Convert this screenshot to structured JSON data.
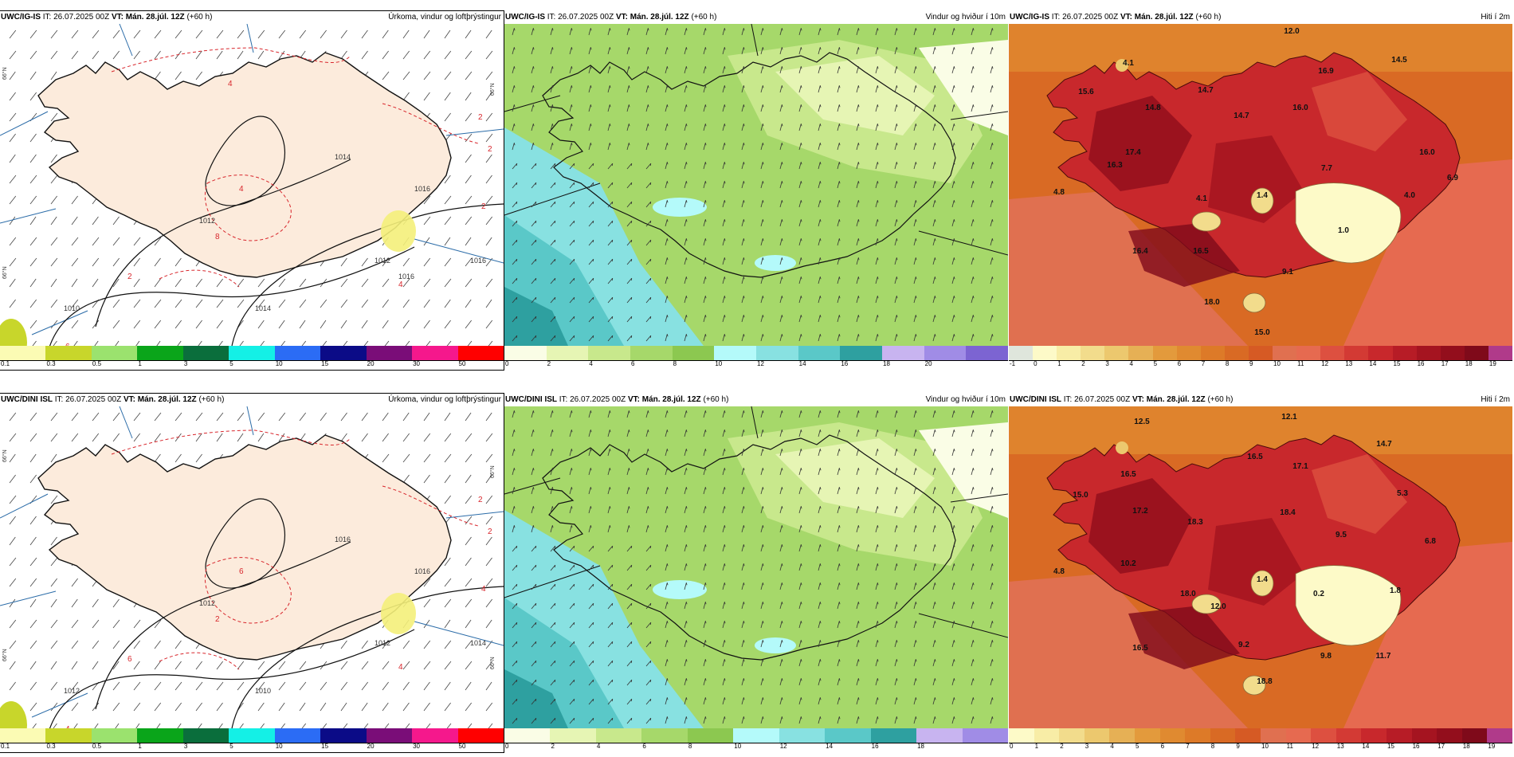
{
  "models": [
    {
      "model_label": "UWC/IG-IS",
      "it_text": "IT: 26.07.2025 00Z",
      "vt_label": "VT:",
      "vt_value": "Mán. 28.júl. 12Z",
      "lead": "(+60 h)"
    },
    {
      "model_label": "UWC/DINI ISL",
      "it_text": "IT: 26.07.2025 00Z",
      "vt_label": "VT:",
      "vt_value": "Mán. 28.júl. 12Z",
      "lead": "(+60 h)"
    }
  ],
  "products": {
    "precip": {
      "title": "Úrkoma, vindur og loftþrýstingur"
    },
    "wind": {
      "title": "Vindur og hviður í 10m"
    },
    "temp": {
      "title": "Hiti í 2m"
    }
  },
  "colorbars": {
    "precip_top": {
      "ticks": [
        "0.1",
        "0.3",
        "0.5",
        "1",
        "3",
        "5",
        "10",
        "15",
        "20",
        "30",
        "50"
      ],
      "colors": [
        "#fbfbb4",
        "#c8d62b",
        "#9be26e",
        "#0aa51a",
        "#0a6e3c",
        "#14f0e6",
        "#2b6cf5",
        "#0b0b87",
        "#7a0d78",
        "#f5188c",
        "#ff0000"
      ]
    },
    "precip_bottom": {
      "ticks": [
        "0.1",
        "0.3",
        "0.5",
        "1",
        "3",
        "5",
        "10",
        "15",
        "20",
        "30",
        "50"
      ],
      "colors": [
        "#fbfbb4",
        "#c8d62b",
        "#9be26e",
        "#0aa51a",
        "#0a6e3c",
        "#14f0e6",
        "#2b6cf5",
        "#0b0b87",
        "#7a0d78",
        "#f5188c",
        "#ff0000"
      ]
    },
    "wind_top": {
      "ticks": [
        "0",
        "2",
        "4",
        "6",
        "8",
        "10",
        "12",
        "14",
        "16",
        "18",
        "20"
      ],
      "colors": [
        "#fafde6",
        "#e6f5b4",
        "#c8e88c",
        "#a6d86a",
        "#8cc850",
        "#b4fafa",
        "#88e1e1",
        "#5ac8c8",
        "#2ea0a0",
        "#c8b4f0",
        "#a08ce6",
        "#7c64d2"
      ]
    },
    "wind_bottom": {
      "ticks": [
        "0",
        "2",
        "4",
        "6",
        "8",
        "10",
        "12",
        "14",
        "16",
        "18"
      ],
      "colors": [
        "#fafde6",
        "#e6f5b4",
        "#c8e88c",
        "#a6d86a",
        "#8cc850",
        "#b4fafa",
        "#88e1e1",
        "#5ac8c8",
        "#2ea0a0",
        "#c8b4f0",
        "#a08ce6"
      ]
    },
    "temp_top": {
      "ticks": [
        "-1",
        "0",
        "1",
        "2",
        "3",
        "4",
        "5",
        "6",
        "7",
        "8",
        "9",
        "10",
        "11",
        "12",
        "13",
        "14",
        "15",
        "16",
        "17",
        "18",
        "19"
      ],
      "colors": [
        "#dfe6dc",
        "#fdfac8",
        "#f8eda6",
        "#f2dc8c",
        "#ecc86e",
        "#e6b055",
        "#e39a3c",
        "#e08a30",
        "#dd7a28",
        "#d96a24",
        "#d65a24",
        "#e07050",
        "#e66a50",
        "#dd5040",
        "#d33a34",
        "#c8282c",
        "#b71c26",
        "#a51420",
        "#930e1c",
        "#7f0a1a",
        "#b03a8a"
      ]
    },
    "temp_bottom": {
      "ticks": [
        "0",
        "1",
        "2",
        "3",
        "4",
        "5",
        "6",
        "7",
        "8",
        "9",
        "10",
        "11",
        "12",
        "13",
        "14",
        "15",
        "16",
        "17",
        "18",
        "19"
      ],
      "colors": [
        "#fdfac8",
        "#f8eda6",
        "#f2dc8c",
        "#ecc86e",
        "#e6b055",
        "#e39a3c",
        "#e08a30",
        "#dd7a28",
        "#d96a24",
        "#d65a24",
        "#e07050",
        "#e66a50",
        "#dd5040",
        "#d33a34",
        "#c8282c",
        "#b71c26",
        "#a51420",
        "#930e1c",
        "#7f0a1a",
        "#b03a8a"
      ]
    }
  },
  "map_labels": {
    "precip_top": {
      "isobars": [
        "1010",
        "1012",
        "1012",
        "1014",
        "1014",
        "1016",
        "1016",
        "1016"
      ],
      "precip": [
        "2",
        "2",
        "2",
        "4",
        "2",
        "6",
        "8",
        "4",
        "4"
      ],
      "lat": [
        "66°N",
        "66°N",
        "66°N"
      ]
    },
    "precip_bottom": {
      "isobars": [
        "1012",
        "1012",
        "1012",
        "1010",
        "1016",
        "1016",
        "1014"
      ],
      "precip": [
        "2",
        "4",
        "2",
        "6",
        "6",
        "4",
        "2",
        "4"
      ],
      "lat": [
        "66°N",
        "66°N",
        "66°N",
        "66°N"
      ]
    },
    "temp_top": [
      "12.0",
      "4.1",
      "16.9",
      "14.5",
      "15.6",
      "14.7",
      "14.8",
      "14.7",
      "16.0",
      "17.4",
      "16.0",
      "4.8",
      "16.3",
      "7.7",
      "6.9",
      "4.1",
      "1.4",
      "4.0",
      "1.0",
      "16.4",
      "16.5",
      "9.1",
      "18.0",
      "15.0"
    ],
    "temp_bottom": [
      "12.5",
      "12.1",
      "14.7",
      "16.5",
      "16.5",
      "17.1",
      "15.0",
      "17.2",
      "18.4",
      "5.3",
      "18.3",
      "9.5",
      "6.8",
      "4.8",
      "10.2",
      "18.0",
      "1.4",
      "0.2",
      "1.8",
      "12.0",
      "16.5",
      "9.2",
      "11.7",
      "9.8",
      "18.8"
    ]
  },
  "colors": {
    "land_precip": "#fcebdc",
    "sea_precip": "#ffffff",
    "isobar": "#111111",
    "precip_contour": "#d8262c",
    "graticule": "#2b6ca8"
  }
}
